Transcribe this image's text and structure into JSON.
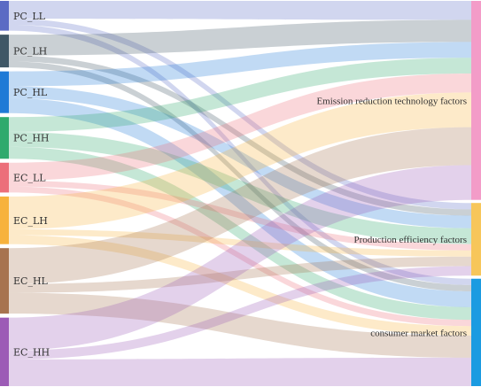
{
  "sources": [
    {
      "id": "PC_LL",
      "label": "PC_LL",
      "value": 10,
      "color": "#5b6bc4"
    },
    {
      "id": "PC_LH",
      "label": "PC_LH",
      "value": 11,
      "color": "#3f5766"
    },
    {
      "id": "PC_HL",
      "label": "PC_HL",
      "value": 14,
      "color": "#1f7ad6"
    },
    {
      "id": "PC_HH",
      "label": "PC_HH",
      "value": 14,
      "color": "#2faa6d"
    },
    {
      "id": "EC_LL",
      "label": "EC_LL",
      "value": 10,
      "color": "#ec6f7a"
    },
    {
      "id": "EC_LH",
      "label": "EC_LH",
      "value": 16,
      "color": "#f7b23c"
    },
    {
      "id": "EC_HL",
      "label": "EC_HL",
      "value": 22,
      "color": "#a7734f"
    },
    {
      "id": "EC_HH",
      "label": "EC_HH",
      "value": 23,
      "color": "#9c5bb6"
    }
  ],
  "targets": [
    {
      "id": "ERT",
      "label": "Emission reduction technology factors",
      "color": "#f39cc8"
    },
    {
      "id": "PEF",
      "label": "Production efficiency factors",
      "color": "#f7c65a"
    },
    {
      "id": "CMF",
      "label": "consumer market factors",
      "color": "#1b9be1"
    }
  ],
  "links": [
    {
      "source": "PC_LL",
      "target": "ERT",
      "value": 6
    },
    {
      "source": "PC_LL",
      "target": "PEF",
      "value": 2
    },
    {
      "source": "PC_LL",
      "target": "CMF",
      "value": 2
    },
    {
      "source": "PC_LH",
      "target": "ERT",
      "value": 7
    },
    {
      "source": "PC_LH",
      "target": "PEF",
      "value": 2
    },
    {
      "source": "PC_LH",
      "target": "CMF",
      "value": 2
    },
    {
      "source": "PC_HL",
      "target": "ERT",
      "value": 5
    },
    {
      "source": "PC_HL",
      "target": "PEF",
      "value": 4
    },
    {
      "source": "PC_HL",
      "target": "CMF",
      "value": 5
    },
    {
      "source": "PC_HH",
      "target": "ERT",
      "value": 5
    },
    {
      "source": "PC_HH",
      "target": "PEF",
      "value": 5
    },
    {
      "source": "PC_HH",
      "target": "CMF",
      "value": 4
    },
    {
      "source": "EC_LL",
      "target": "ERT",
      "value": 6
    },
    {
      "source": "EC_LL",
      "target": "PEF",
      "value": 2
    },
    {
      "source": "EC_LL",
      "target": "CMF",
      "value": 2
    },
    {
      "source": "EC_LH",
      "target": "ERT",
      "value": 11
    },
    {
      "source": "EC_LH",
      "target": "PEF",
      "value": 2
    },
    {
      "source": "EC_LH",
      "target": "CMF",
      "value": 3
    },
    {
      "source": "EC_HL",
      "target": "ERT",
      "value": 12
    },
    {
      "source": "EC_HL",
      "target": "PEF",
      "value": 3
    },
    {
      "source": "EC_HL",
      "target": "CMF",
      "value": 7
    },
    {
      "source": "EC_HH",
      "target": "ERT",
      "value": 11
    },
    {
      "source": "EC_HH",
      "target": "PEF",
      "value": 3
    },
    {
      "source": "EC_HH",
      "target": "CMF",
      "value": 9
    }
  ]
}
